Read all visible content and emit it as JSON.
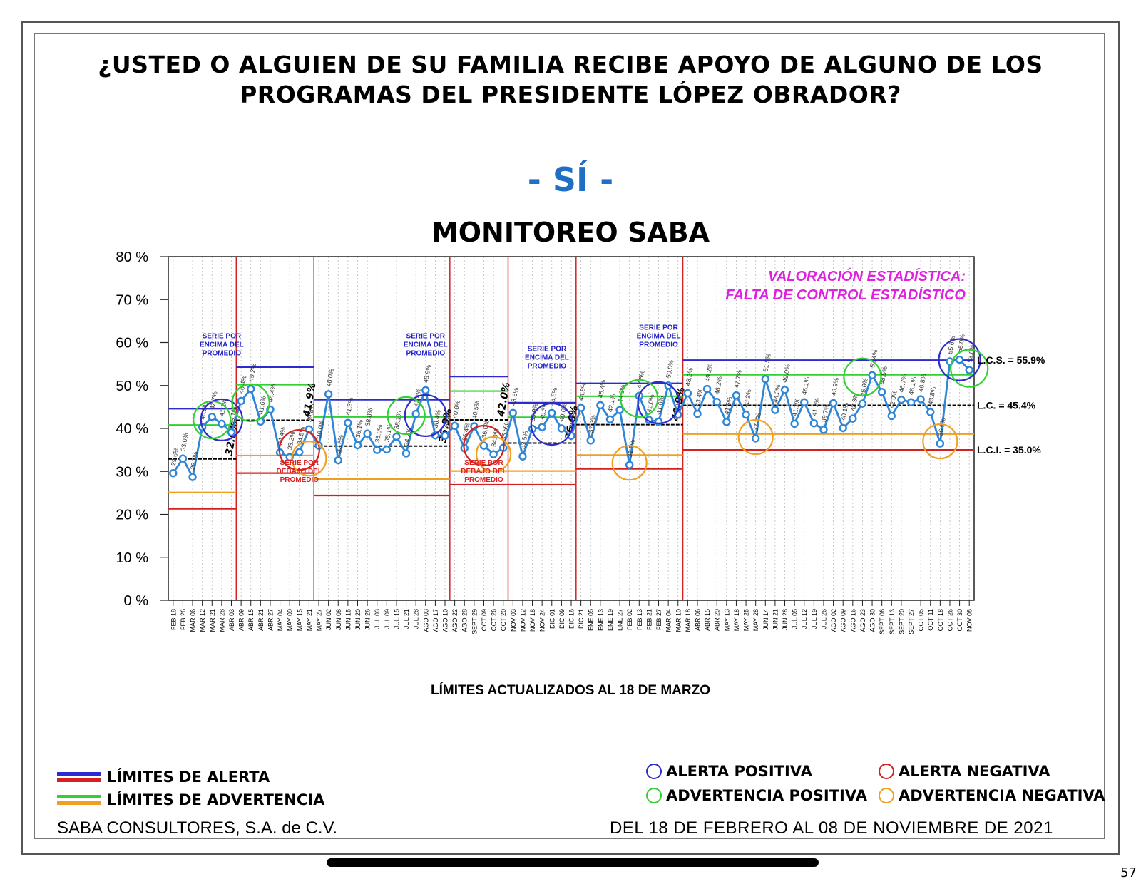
{
  "title_line1": "¿USTED O ALGUIEN DE SU FAMILIA RECIBE APOYO DE ALGUNO DE LOS",
  "title_line2": "PROGRAMAS DEL PRESIDENTE LÓPEZ OBRADOR?",
  "subtitle": "- SÍ -",
  "chart_title": "MONITOREO SABA",
  "limits_note": "LÍMITES ACTUALIZADOS AL  18  DE  MARZO",
  "assessment_line1": "VALORACIÓN ESTADÍSTICA:",
  "assessment_line2": "FALTA DE CONTROL ESTADÍSTICO",
  "limit_labels": {
    "lcs": "L.C.S. =  55.9%",
    "lc": "L.C. =  45.4%",
    "lci": "L.C.I. =  35.0%"
  },
  "legend": {
    "alert_limits": "LÍMITES DE ALERTA",
    "warning_limits": "LÍMITES DE ADVERTENCIA",
    "positive_alert": "ALERTA POSITIVA",
    "negative_alert": "ALERTA NEGATIVA",
    "positive_warning": "ADVERTENCIA POSITIVA",
    "negative_warning": "ADVERTENCIA NEGATIVA"
  },
  "footer_left": "SABA CONSULTORES, S.A. de C.V.",
  "footer_right": "DEL 18 DE FEBRERO AL 08 DE NOVIEMBRE DE 2021",
  "page_number": "57",
  "colors": {
    "series": "#2f86d6",
    "alert": "#2b2bd0",
    "alert_low": "#d42020",
    "warning_high": "#33d033",
    "warning_low": "#f0a020",
    "center": "#000000",
    "annot_blue": "#2222cc",
    "annot_red": "#dd2222",
    "assessment": "#e020e0"
  },
  "chart_data": {
    "type": "line",
    "title": "MONITOREO SABA",
    "ylim": [
      0,
      80
    ],
    "yticks": [
      "0 %",
      "10 %",
      "20 %",
      "30 %",
      "40 %",
      "50 %",
      "60 %",
      "70 %",
      "80 %"
    ],
    "categories": [
      "FEB 18",
      "FEB 26",
      "MAR 06",
      "MAR 12",
      "MAR 21",
      "MAR 28",
      "ABR 03",
      "ABR 09",
      "ABR 15",
      "ABR 21",
      "ABR 27",
      "MAY 04",
      "MAY 09",
      "MAY 15",
      "MAY 21",
      "MAY 27",
      "JUN 02",
      "JUN 08",
      "JUN 15",
      "JUN 20",
      "JUN 26",
      "JUL 03",
      "JUL 09",
      "JUL 15",
      "JUL 21",
      "JUL 28",
      "AGO 03",
      "AGO 17",
      "AGO 10",
      "AGO 22",
      "AGO 28",
      "SEPT 29",
      "OCT 09",
      "OCT 26",
      "OCT 20",
      "NOV 03",
      "NOV 12",
      "NOV 18",
      "NOV 24",
      "DIC 01",
      "DIC 09",
      "DIC 16",
      "DIC 21",
      "ENE 05",
      "ENE 13",
      "ENE 19",
      "ENE 27",
      "FEB 02",
      "FEB 13",
      "FEB 21",
      "FEB 27",
      "MAR 04",
      "MAR 10",
      "MAR 18",
      "ABR 06",
      "ABR 15",
      "ABR 29",
      "MAY 13",
      "MAY 18",
      "MAY 25",
      "MAY 28",
      "JUN 14",
      "JUN 21",
      "JUN 28",
      "JUL 05",
      "JUL 12",
      "JUL 19",
      "JUL 26",
      "AGO 02",
      "AGO 09",
      "AGO 16",
      "AGO 23",
      "AGO 30",
      "SEPT 06",
      "SEPT 13",
      "SEPT 20",
      "SEPT 27",
      "OCT 05",
      "OCT 11",
      "OCT 18",
      "OCT 26",
      "OCT 30",
      "NOV 08"
    ],
    "series": [
      {
        "values": [
          29.6,
          33.0,
          28.7,
          40.3,
          42.7,
          41.1,
          39.1,
          46.4,
          49.2,
          41.6,
          44.4,
          34.4,
          33.3,
          34.5,
          39.8,
          36.0,
          48.0,
          32.6,
          41.3,
          36.1,
          38.8,
          35.0,
          35.1,
          38.1,
          34.2,
          43.4,
          48.9,
          38.4,
          38.3,
          40.6,
          35.4,
          40.5,
          36.0,
          34.0,
          35.5,
          43.6,
          33.5,
          39.9,
          40.3,
          43.6,
          40.0,
          38.3,
          44.8,
          37.2,
          45.4,
          42.1,
          44.3,
          31.5,
          47.6,
          42.0,
          41.6,
          50.0,
          43.2,
          48.2,
          43.4,
          49.2,
          46.2,
          41.5,
          47.7,
          43.2,
          37.7,
          51.5,
          44.3,
          49.0,
          41.1,
          46.1,
          41.2,
          39.7,
          45.9,
          40.1,
          42.3,
          45.8,
          52.4,
          48.5,
          42.9,
          46.7,
          46.1,
          46.8,
          43.8,
          36.5,
          55.6,
          56.0,
          53.6
        ],
        "value_labels": [
          "29.6%",
          "33.0%",
          "28.7%",
          "40.3%",
          "42.7%",
          "41.1%",
          "39.1%",
          "46.4%",
          "49.2%",
          "41.6%",
          "44.4%",
          "34.4%",
          "33.3%",
          "34.5%",
          "39.8%",
          "36.0%",
          "48.0%",
          "32.6%",
          "41.3%",
          "36.1%",
          "38.8%",
          "35.0%",
          "35.1%",
          "38.1%",
          "34.2%",
          "43.4%",
          "48.9%",
          "38.4%",
          "38.3%",
          "40.6%",
          "35.4%",
          "40.5%",
          "36.0%",
          "34.0%",
          "35.5%",
          "43.6%",
          "33.5%",
          "39.9%",
          "40.3%",
          "43.6%",
          "40.0%",
          "38.3%",
          "44.8%",
          "37.2%",
          "45.4%",
          "42.1%",
          "44.3%",
          "31.5%",
          "47.6%",
          "42.0%",
          "41.6%",
          "50.0%",
          "43.2%",
          "48.2%",
          "43.4%",
          "49.2%",
          "46.2%",
          "41.5%",
          "47.7%",
          "43.2%",
          "37.7%",
          "51.5%",
          "44.3%",
          "49.0%",
          "41.1%",
          "46.1%",
          "41.2%",
          "39.7%",
          "45.9%",
          "40.1%",
          "42.3%",
          "45.8%",
          "52.4%",
          "48.5%",
          "42.9%",
          "46.7%",
          "46.1%",
          "46.8%",
          "43.8%",
          "36.5%",
          "55.6%",
          "56.0%",
          "53.6%"
        ]
      }
    ],
    "segments": [
      {
        "from": 0,
        "to": 7,
        "ucl": 44.6,
        "uwl": 40.8,
        "cl": 32.9,
        "lwl": 25.1,
        "lcl": 21.3,
        "cl_label": "32.9%"
      },
      {
        "from": 7,
        "to": 15,
        "ucl": 54.3,
        "uwl": 50.2,
        "cl": 41.9,
        "lwl": 33.7,
        "lcl": 29.6,
        "cl_label": "41.9%"
      },
      {
        "from": 15,
        "to": 29,
        "ucl": 46.7,
        "uwl": 42.7,
        "cl": 35.9,
        "lwl": 28.2,
        "lcl": 24.4,
        "cl_label": "35.9%"
      },
      {
        "from": 29,
        "to": 35,
        "ucl": 52.1,
        "uwl": 48.7,
        "cl": 42.0,
        "lwl": 30.1,
        "lcl": 26.9,
        "cl_label": "42.0%"
      },
      {
        "from": 35,
        "to": 42,
        "ucl": 46.0,
        "uwl": 42.6,
        "cl": 36.6,
        "lwl": 30.1,
        "lcl": 26.9,
        "cl_label": "36.6%"
      },
      {
        "from": 42,
        "to": 53,
        "ucl": 50.5,
        "uwl": 47.5,
        "cl": 40.9,
        "lwl": 33.8,
        "lcl": 30.6,
        "cl_label": "40.9%"
      },
      {
        "from": 53,
        "to": 83,
        "ucl": 55.9,
        "uwl": 52.5,
        "cl": 45.4,
        "lwl": 38.7,
        "lcl": 35.0,
        "cl_label": ""
      }
    ],
    "markers": [
      {
        "type": "positive_alert",
        "center": 5,
        "value": 42
      },
      {
        "type": "positive_alert",
        "center": 26,
        "value": 43
      },
      {
        "type": "positive_alert",
        "center": 39,
        "value": 41
      },
      {
        "type": "positive_alert",
        "center": 50,
        "value": 46
      },
      {
        "type": "positive_alert",
        "center": 81,
        "value": 56
      },
      {
        "type": "negative_alert",
        "center": 13,
        "value": 35
      },
      {
        "type": "negative_alert",
        "center": 32,
        "value": 36
      },
      {
        "type": "positive_warning",
        "center": 4,
        "value": 42
      },
      {
        "type": "positive_warning",
        "center": 8,
        "value": 46
      },
      {
        "type": "positive_warning",
        "center": 24,
        "value": 43
      },
      {
        "type": "positive_warning",
        "center": 48,
        "value": 47
      },
      {
        "type": "positive_warning",
        "center": 71,
        "value": 52
      },
      {
        "type": "positive_warning",
        "center": 82,
        "value": 54
      },
      {
        "type": "negative_warning",
        "center": 14,
        "value": 33
      },
      {
        "type": "negative_warning",
        "center": 33,
        "value": 34
      },
      {
        "type": "negative_warning",
        "center": 47,
        "value": 32
      },
      {
        "type": "negative_warning",
        "center": 60,
        "value": 38
      },
      {
        "type": "negative_warning",
        "center": 79,
        "value": 37
      }
    ],
    "annotations": [
      {
        "color": "blue",
        "lines": [
          "SERIE POR",
          "ENCIMA DEL",
          "PROMEDIO"
        ],
        "center": 5,
        "value": 61
      },
      {
        "color": "blue",
        "lines": [
          "SERIE POR",
          "ENCIMA DEL",
          "PROMEDIO"
        ],
        "center": 26,
        "value": 61
      },
      {
        "color": "blue",
        "lines": [
          "SERIE POR",
          "ENCIMA DEL",
          "PROMEDIO"
        ],
        "center": 38.5,
        "value": 58
      },
      {
        "color": "blue",
        "lines": [
          "SERIE POR",
          "ENCIMA DEL",
          "PROMEDIO"
        ],
        "center": 50,
        "value": 63
      },
      {
        "color": "red",
        "lines": [
          "SERIE POR",
          "DEBAJO DEL",
          "PROMEDIO"
        ],
        "center": 13,
        "value": 31.5
      },
      {
        "color": "red",
        "lines": [
          "SERIE POR",
          "DEBAJO DEL",
          "PROMEDIO"
        ],
        "center": 32,
        "value": 31.5
      }
    ]
  }
}
